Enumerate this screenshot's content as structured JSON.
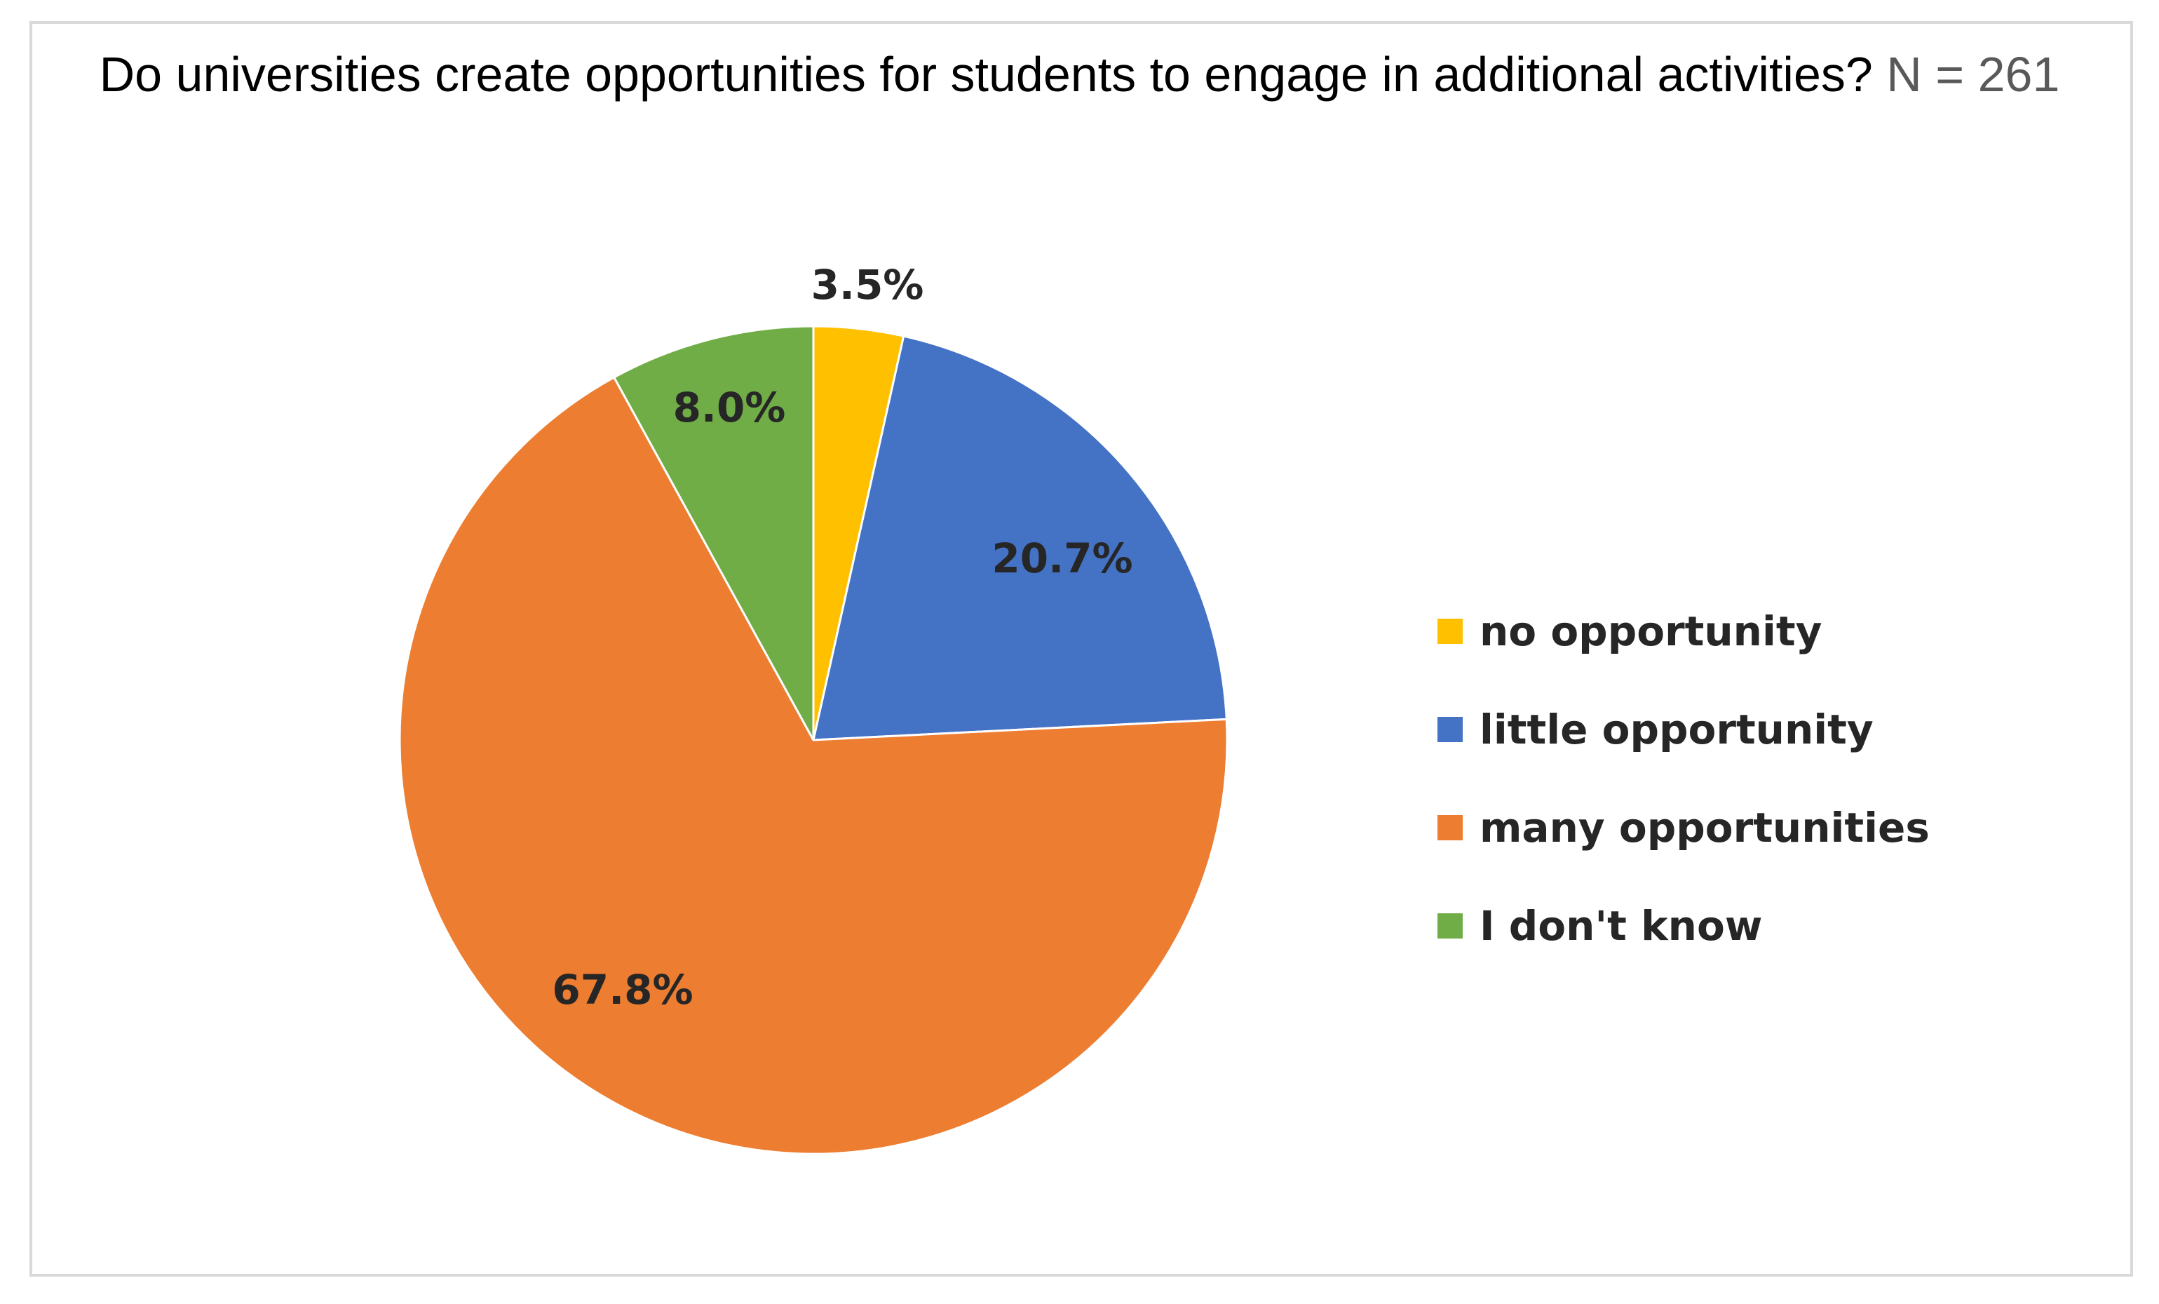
{
  "chart_data": {
    "type": "pie",
    "title": "Do universities create opportunities for students to engage in additional activities?",
    "title_suffix": "N = 261",
    "start_angle_deg": 0,
    "direction": "clockwise",
    "slices": [
      {
        "label": "no opportunity",
        "value": 3.5,
        "display": "3.5%",
        "color": "#FFC000"
      },
      {
        "label": "little opportunity",
        "value": 20.7,
        "display": "20.7%",
        "color": "#4472C4"
      },
      {
        "label": "many opportunities",
        "value": 67.8,
        "display": "67.8%",
        "color": "#ED7D31"
      },
      {
        "label": "I don't know",
        "value": 8.0,
        "display": "8.0%",
        "color": "#70AD47"
      }
    ],
    "legend_position": "right"
  }
}
